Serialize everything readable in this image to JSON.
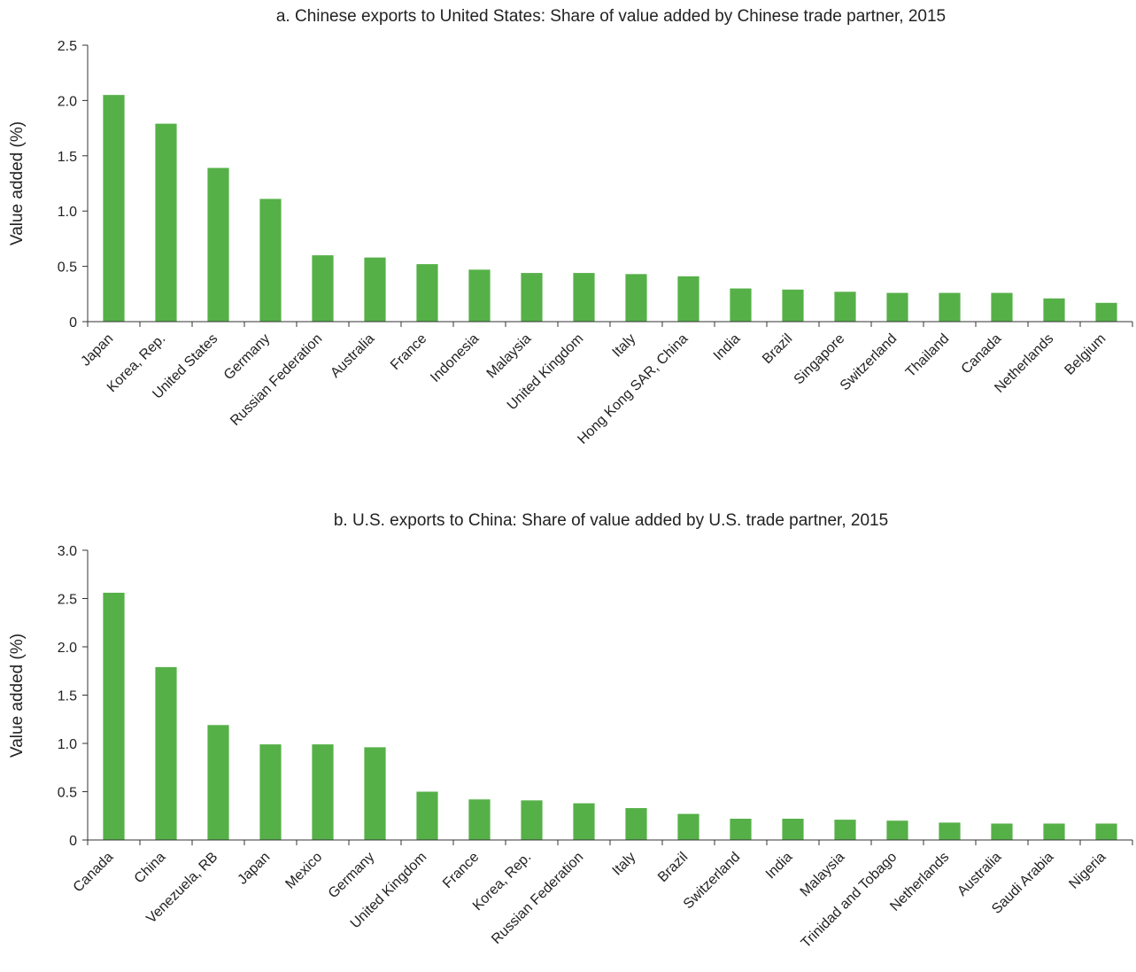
{
  "chart_data": [
    {
      "type": "bar",
      "title": "a. Chinese exports to United States: Share of value added by Chinese trade partner, 2015",
      "ylabel": "Value added (%)",
      "xlabel": "",
      "ylim": [
        0,
        2.5
      ],
      "yticks": [
        0,
        0.5,
        1.0,
        1.5,
        2.0,
        2.5
      ],
      "ytick_labels": [
        "0",
        "0.5",
        "1.0",
        "1.5",
        "2.0",
        "2.5"
      ],
      "bar_color": "#56b048",
      "grid": false,
      "legend": "none",
      "categories": [
        "Japan",
        "Korea, Rep.",
        "United States",
        "Germany",
        "Russian Federation",
        "Australia",
        "France",
        "Indonesia",
        "Malaysia",
        "United Kingdom",
        "Italy",
        "Hong Kong SAR, China",
        "India",
        "Brazil",
        "Singapore",
        "Switzerland",
        "Thailand",
        "Canada",
        "Netherlands",
        "Belgium"
      ],
      "values": [
        2.05,
        1.79,
        1.39,
        1.11,
        0.6,
        0.58,
        0.52,
        0.47,
        0.44,
        0.44,
        0.43,
        0.41,
        0.3,
        0.29,
        0.27,
        0.26,
        0.26,
        0.26,
        0.21,
        0.17
      ]
    },
    {
      "type": "bar",
      "title": "b. U.S. exports to China: Share of value added by U.S. trade partner, 2015",
      "ylabel": "Value added (%)",
      "xlabel": "",
      "ylim": [
        0,
        3.0
      ],
      "yticks": [
        0,
        0.5,
        1.0,
        1.5,
        2.0,
        2.5,
        3.0
      ],
      "ytick_labels": [
        "0",
        "0.5",
        "1.0",
        "1.5",
        "2.0",
        "2.5",
        "3.0"
      ],
      "bar_color": "#56b048",
      "grid": false,
      "legend": "none",
      "categories": [
        "Canada",
        "China",
        "Venezuela, RB",
        "Japan",
        "Mexico",
        "Germany",
        "United Kingdom",
        "France",
        "Korea, Rep.",
        "Russian Federation",
        "Italy",
        "Brazil",
        "Switzerland",
        "India",
        "Malaysia",
        "Trinidad and Tobago",
        "Netherlands",
        "Australia",
        "Saudi Arabia",
        "Nigeria"
      ],
      "values": [
        2.56,
        1.79,
        1.19,
        0.99,
        0.99,
        0.96,
        0.5,
        0.42,
        0.41,
        0.38,
        0.33,
        0.27,
        0.22,
        0.22,
        0.21,
        0.2,
        0.18,
        0.17,
        0.17,
        0.17
      ]
    }
  ]
}
